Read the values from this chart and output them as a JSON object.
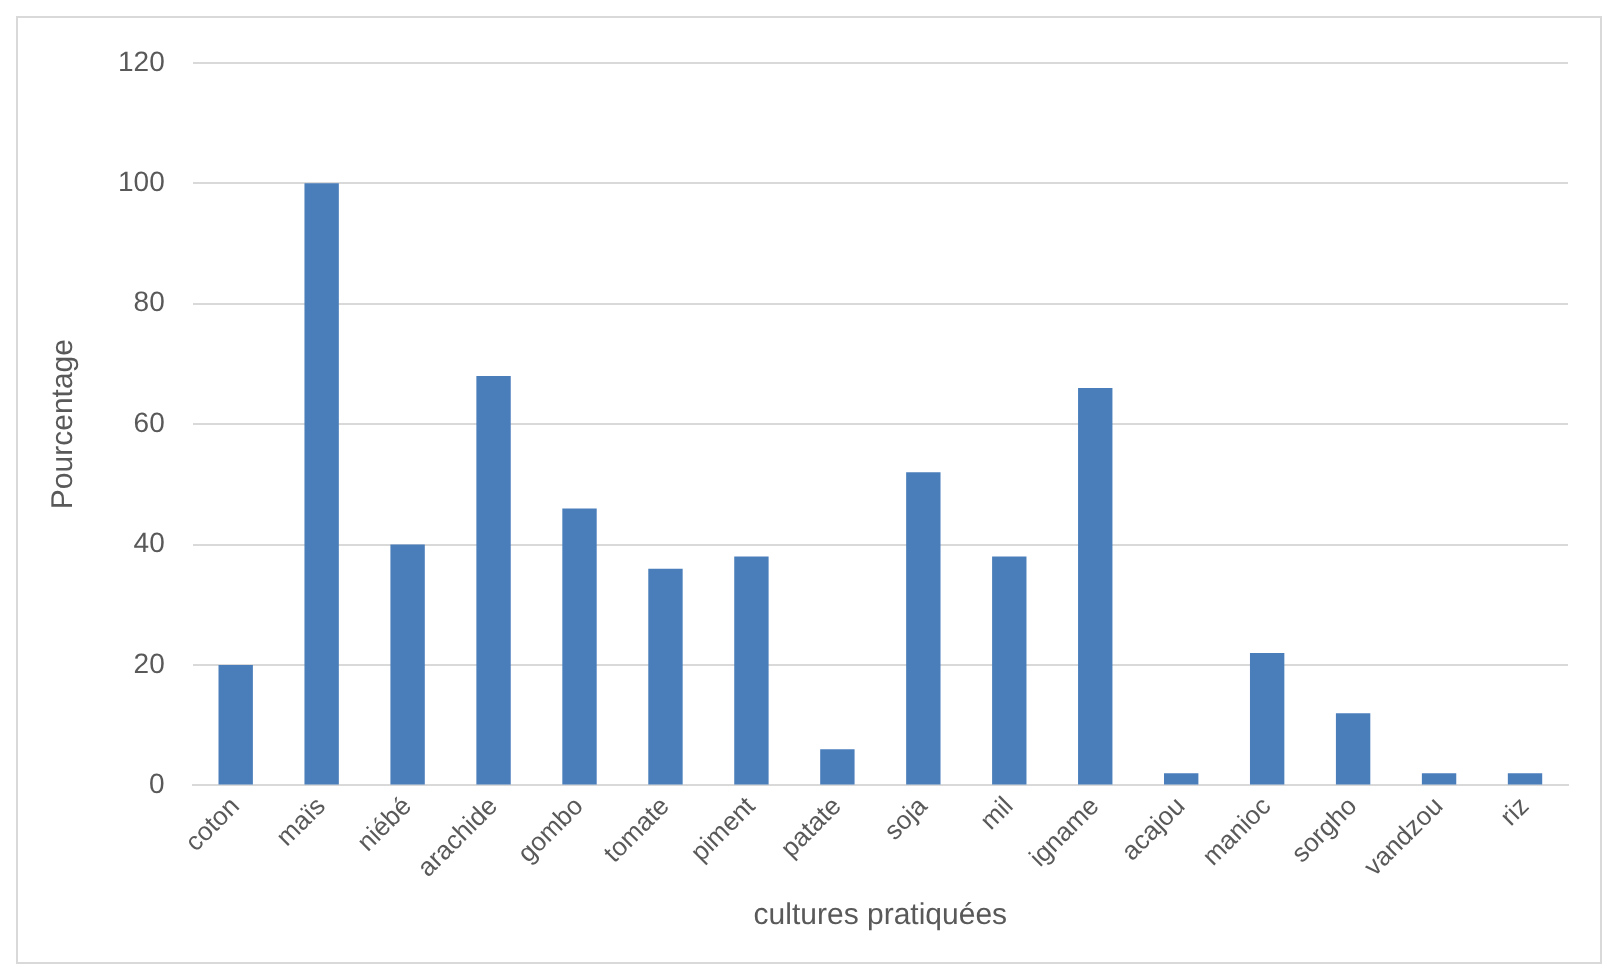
{
  "chart_data": {
    "type": "bar",
    "xlabel": "cultures pratiquées",
    "ylabel": "Pourcentage",
    "categories": [
      "coton",
      "maïs",
      "niébé",
      "arachide",
      "gombo",
      "tomate",
      "piment",
      "patate",
      "soja",
      "mil",
      "igname",
      "acajou",
      "manioc",
      "sorgho",
      "vandzou",
      "riz"
    ],
    "values": [
      20,
      100,
      40,
      68,
      46,
      36,
      38,
      6,
      52,
      38,
      66,
      2,
      22,
      12,
      2,
      2
    ],
    "color": "#4a7ebb",
    "ylim": [
      0,
      120
    ],
    "yticks": [
      0,
      20,
      40,
      60,
      80,
      100,
      120
    ],
    "grid": "y"
  }
}
